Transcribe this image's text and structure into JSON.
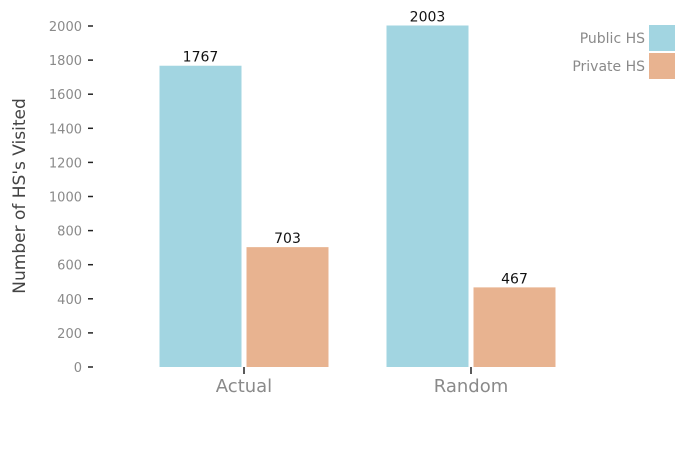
{
  "chart_data": {
    "type": "bar",
    "title": "",
    "xlabel": "",
    "ylabel": "Number of HS's Visited",
    "categories": [
      "Actual",
      "Random"
    ],
    "series": [
      {
        "name": "Public HS",
        "values": [
          1767,
          2003
        ],
        "color": "#a2d5e1"
      },
      {
        "name": "Private HS",
        "values": [
          703,
          467
        ],
        "color": "#e8b390"
      }
    ],
    "data_labels": [
      [
        "1767",
        "2003"
      ],
      [
        "703",
        "467"
      ]
    ],
    "ylim": [
      0,
      2000
    ],
    "yticks": [
      "0",
      "200",
      "400",
      "600",
      "800",
      "1000",
      "1200",
      "1400",
      "1600",
      "1800",
      "2000"
    ],
    "grid": false,
    "legend_position": "top-right"
  }
}
